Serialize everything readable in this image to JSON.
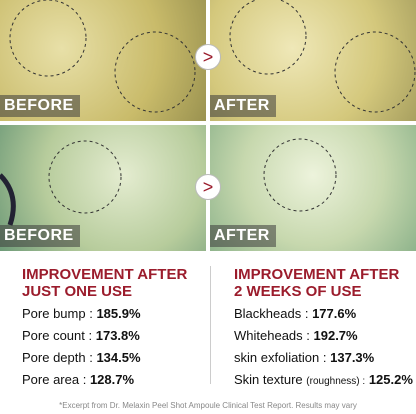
{
  "photos": [
    {
      "label": "BEFORE"
    },
    {
      "label": "AFTER"
    },
    {
      "label": "BEFORE"
    },
    {
      "label": "AFTER"
    }
  ],
  "left": {
    "heading": [
      "IMPROVEMENT AFTER",
      "JUST ONE USE"
    ],
    "items": [
      {
        "label": "Pore bump :",
        "value": "185.9%"
      },
      {
        "label": "Pore count :",
        "value": "173.8%"
      },
      {
        "label": "Pore depth :",
        "value": "134.5%"
      },
      {
        "label": "Pore area :",
        "value": "128.7%"
      }
    ]
  },
  "right": {
    "heading": [
      "IMPROVEMENT AFTER",
      "2 WEEKS OF USE"
    ],
    "items": [
      {
        "label": "Blackheads :",
        "value": "177.6%"
      },
      {
        "label": "Whiteheads :",
        "value": "192.7%"
      },
      {
        "label": "skin exfoliation :",
        "value": "137.3%"
      },
      {
        "label": "Skin texture",
        "note": "(roughness) :",
        "value": "125.2%"
      }
    ]
  },
  "footnote": "*Excerpt from Dr. Melaxin Peel Shot Ampoule Clinical Test Report. Results may vary"
}
